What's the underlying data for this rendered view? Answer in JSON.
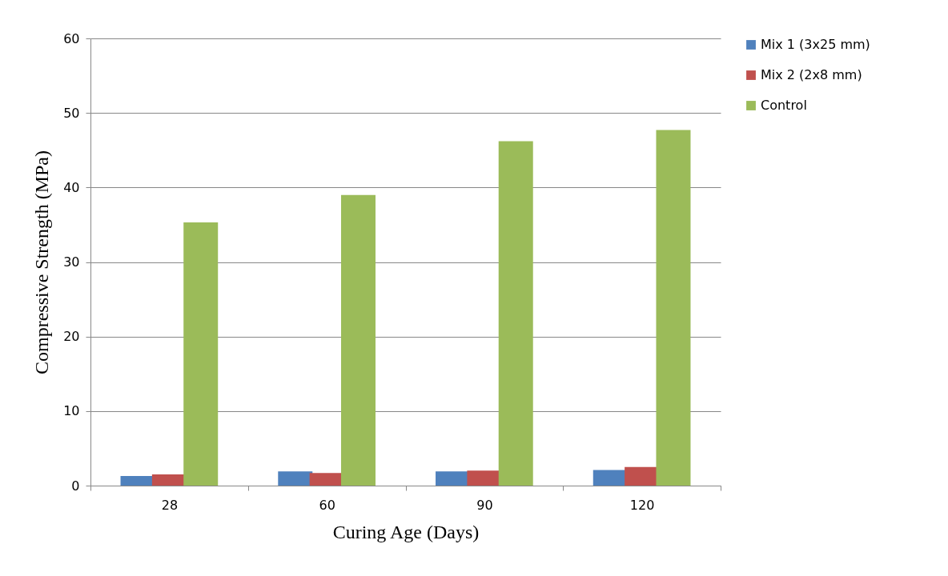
{
  "chart_data": {
    "type": "bar",
    "xlabel": "Curing Age (Days)",
    "ylabel": "Compressive Strength (MPa)",
    "categories": [
      "28",
      "60",
      "90",
      "120"
    ],
    "series": [
      {
        "name": "Mix 1 (3x25 mm)",
        "color": "#4f81bd",
        "values": [
          1.3,
          1.9,
          1.9,
          2.1
        ]
      },
      {
        "name": "Mix 2 (2x8 mm)",
        "color": "#c0504d",
        "values": [
          1.5,
          1.7,
          2.0,
          2.5
        ]
      },
      {
        "name": "Control",
        "color": "#9bbb59",
        "values": [
          35.3,
          39.0,
          46.2,
          47.7
        ]
      }
    ],
    "ylim": [
      0,
      60
    ],
    "yticks": [
      0,
      10,
      20,
      30,
      40,
      50,
      60
    ],
    "grid": "y",
    "legend": "right"
  }
}
